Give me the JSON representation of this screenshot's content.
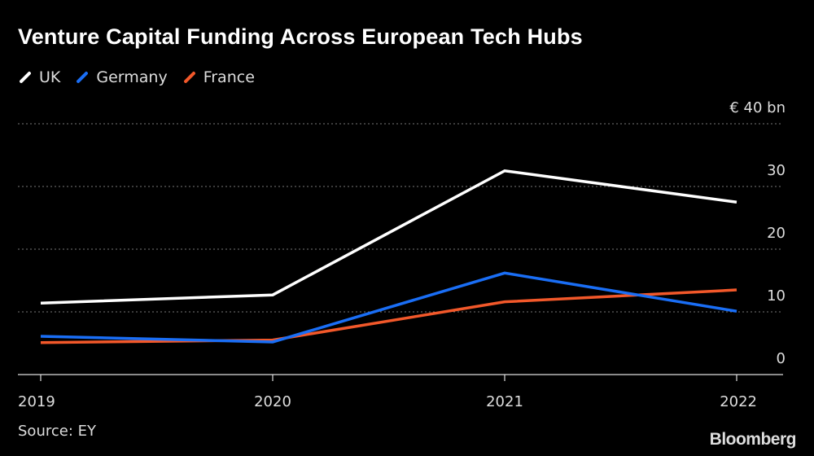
{
  "chart_data": {
    "type": "line",
    "title": "Venture Capital Funding Across European Tech Hubs",
    "x": [
      "2019",
      "2020",
      "2021",
      "2022"
    ],
    "series": [
      {
        "name": "UK",
        "color": "#ffffff",
        "values": [
          11.4,
          12.7,
          32.5,
          27.5
        ]
      },
      {
        "name": "Germany",
        "color": "#1a6ef5",
        "values": [
          6.1,
          5.2,
          16.2,
          10.1
        ]
      },
      {
        "name": "France",
        "color": "#f2582a",
        "values": [
          5.1,
          5.5,
          11.6,
          13.5
        ]
      }
    ],
    "y_ticks": [
      "0",
      "10",
      "20",
      "30",
      "€ 40  bn"
    ],
    "ylim": [
      0,
      40
    ],
    "y_unit": "€ bn",
    "grid": true,
    "legend_placement": "top-left",
    "source": "Source: EY",
    "logo": "Bloomberg"
  }
}
